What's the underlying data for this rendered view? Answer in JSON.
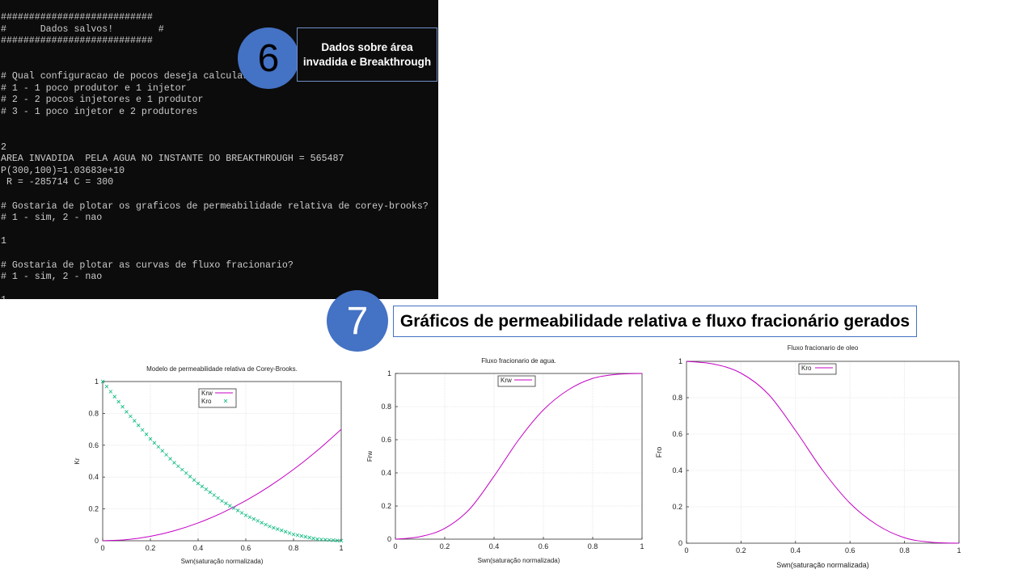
{
  "terminal": {
    "lines": [
      "###########################",
      "#      Dados salvos!        #",
      "###########################",
      "",
      "",
      "# Qual configuracao de pocos deseja calcular?",
      "# 1 - 1 poco produtor e 1 injetor",
      "# 2 - 2 pocos injetores e 1 produtor",
      "# 3 - 1 poco injetor e 2 produtores",
      "",
      "",
      "2",
      "AREA INVADIDA  PELA AGUA NO INSTANTE DO BREAKTHROUGH = 565487",
      "P(300,100)=1.03683e+10",
      " R = -285714 C = 300",
      "",
      "# Gostaria de plotar os graficos de permeabilidade relativa de corey-brooks?",
      "# 1 - sim, 2 - nao",
      "",
      "1",
      "",
      "# Gostaria de plotar as curvas de fluxo fracionario?",
      "# 1 - sim, 2 - nao",
      "",
      "1"
    ]
  },
  "step6": {
    "number": "6",
    "label": "Dados sobre área invadida e Breakthrough"
  },
  "step7": {
    "number": "7",
    "label": "Gráficos de permeabilidade relativa e fluxo fracionário gerados"
  },
  "chart_data": [
    {
      "type": "line",
      "title": "Modelo de permeabilidade relativa de Corey-Brooks.",
      "xlabel": "Swn(saturação normalizada)",
      "ylabel": "Kr",
      "xlim": [
        0,
        1
      ],
      "ylim": [
        0,
        1
      ],
      "xticks": [
        "0",
        "0.2",
        "0.4",
        "0.6",
        "0.8",
        "1"
      ],
      "yticks": [
        "0",
        "0.2",
        "0.4",
        "0.6",
        "0.8",
        "1"
      ],
      "grid": true,
      "legend": "top-center",
      "x": [
        0,
        0.1,
        0.2,
        0.3,
        0.4,
        0.5,
        0.6,
        0.7,
        0.8,
        0.9,
        1.0
      ],
      "series": [
        {
          "name": "Krw",
          "color": "#c400c4",
          "style": "line",
          "values": [
            0,
            0.007,
            0.028,
            0.063,
            0.112,
            0.175,
            0.252,
            0.343,
            0.448,
            0.567,
            0.7
          ]
        },
        {
          "name": "Kro",
          "color": "#00b87a",
          "style": "cross",
          "values": [
            1,
            0.81,
            0.64,
            0.49,
            0.36,
            0.25,
            0.16,
            0.09,
            0.04,
            0.01,
            0
          ]
        }
      ]
    },
    {
      "type": "line",
      "title": "Fluxo fracionario de agua.",
      "xlabel": "Swn(saturação normalizada)",
      "ylabel": "Frw",
      "xlim": [
        0,
        1
      ],
      "ylim": [
        0,
        1
      ],
      "xticks": [
        "0",
        "0.2",
        "0.4",
        "0.6",
        "0.8",
        "1"
      ],
      "yticks": [
        "0",
        "0.2",
        "0.4",
        "0.6",
        "0.8",
        "1"
      ],
      "grid": true,
      "legend": "top-center",
      "x": [
        0,
        0.1,
        0.2,
        0.3,
        0.4,
        0.5,
        0.6,
        0.7,
        0.8,
        0.9,
        1.0
      ],
      "series": [
        {
          "name": "Krw",
          "color": "#c400c4",
          "style": "line",
          "values": [
            0,
            0.015,
            0.065,
            0.18,
            0.38,
            0.6,
            0.78,
            0.9,
            0.97,
            0.995,
            1
          ]
        }
      ]
    },
    {
      "type": "line",
      "title": "Fluxo fracionario de oleo",
      "xlabel": "Swn(saturação normalizada)",
      "ylabel": "Fro",
      "xlim": [
        0,
        1
      ],
      "ylim": [
        0,
        1
      ],
      "xticks": [
        "0",
        "0.2",
        "0.4",
        "0.6",
        "0.8",
        "1"
      ],
      "yticks": [
        "0",
        "0.2",
        "0.4",
        "0.6",
        "0.8",
        "1"
      ],
      "grid": true,
      "legend": "top-center",
      "x": [
        0,
        0.1,
        0.2,
        0.3,
        0.4,
        0.5,
        0.6,
        0.7,
        0.8,
        0.9,
        1.0
      ],
      "series": [
        {
          "name": "Kro",
          "color": "#c400c4",
          "style": "line",
          "values": [
            1,
            0.985,
            0.935,
            0.82,
            0.62,
            0.4,
            0.22,
            0.1,
            0.03,
            0.005,
            0
          ]
        }
      ]
    }
  ]
}
